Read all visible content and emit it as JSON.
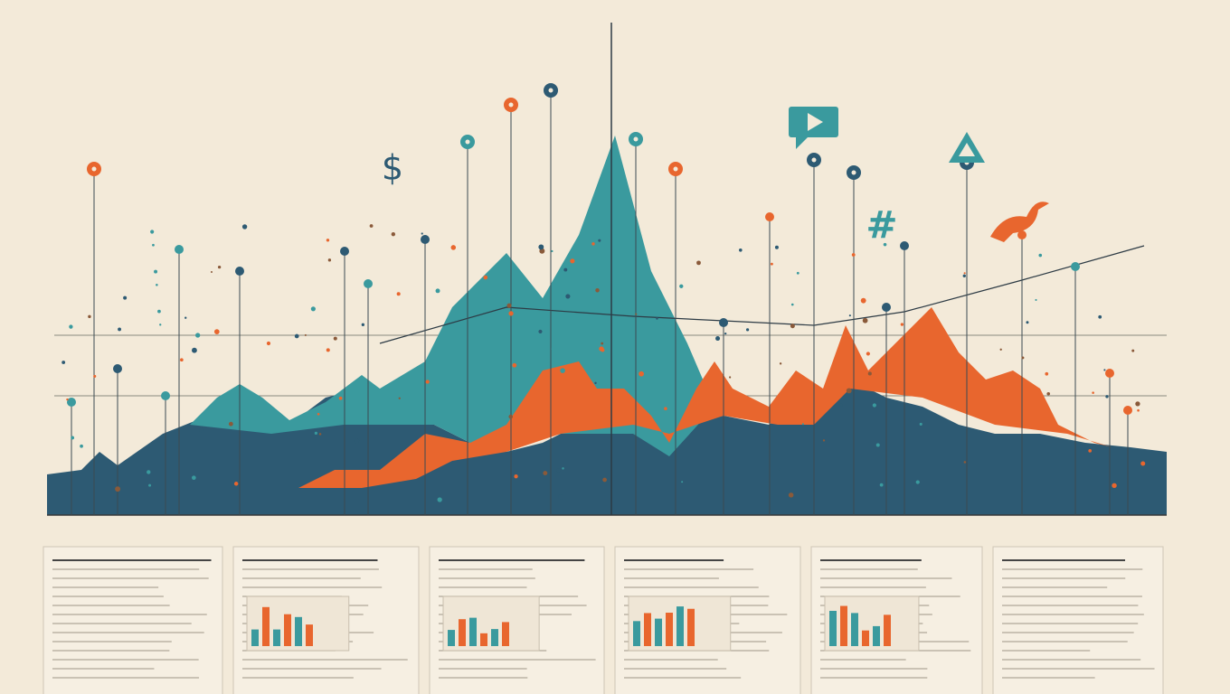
{
  "symbols": [
    "$",
    "#"
  ]
}
